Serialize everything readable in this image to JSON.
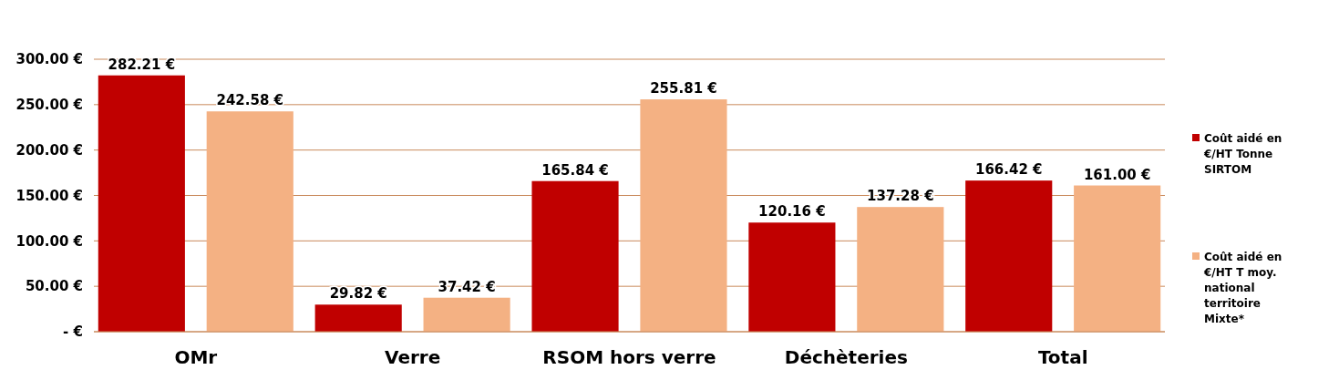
{
  "chart_data": {
    "type": "bar",
    "categories": [
      "OMr",
      "Verre",
      "RSOM hors verre",
      "Déchèteries",
      "Total"
    ],
    "series": [
      {
        "name": "Coût aidé en €/HT Tonne SIRTOM",
        "color": "#c00000",
        "values": [
          282.21,
          29.82,
          165.84,
          120.16,
          166.42
        ],
        "value_labels": [
          "282.21 €",
          "29.82 €",
          "165.84 €",
          "120.16 €",
          "166.42 €"
        ]
      },
      {
        "name": "Coût aidé en €/HT T moy. national territoire Mixte*",
        "color": "#f4b183",
        "values": [
          242.58,
          37.42,
          255.81,
          137.28,
          161.0
        ],
        "value_labels": [
          "242.58 €",
          "37.42 €",
          "255.81 €",
          "137.28 €",
          "161.00 €"
        ]
      }
    ],
    "ylim": [
      0,
      300
    ],
    "yticks": [
      {
        "value": 0,
        "label": "-   €"
      },
      {
        "value": 50,
        "label": "50.00 €"
      },
      {
        "value": 100,
        "label": "100.00 €"
      },
      {
        "value": 150,
        "label": "150.00 €"
      },
      {
        "value": 200,
        "label": "200.00 €"
      },
      {
        "value": 250,
        "label": "250.00 €"
      },
      {
        "value": 300,
        "label": "300.00 €"
      }
    ],
    "grid": "y",
    "legend": "right"
  }
}
